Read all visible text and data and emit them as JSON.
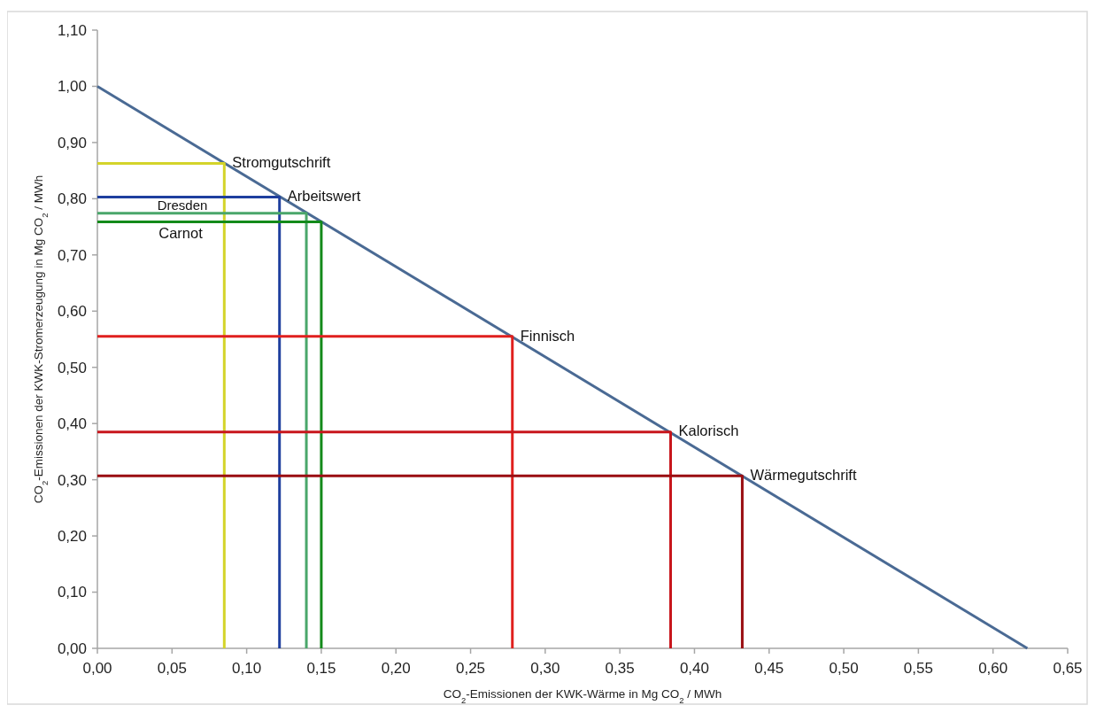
{
  "chart_data": {
    "type": "line",
    "xlabel": "CO$_{2}$-Emissionen der KWK-Wärme in Mg CO$_{2}$ / MWh",
    "ylabel": "CO$_{2}$-Emissionen der KWK-Stromerzeugung in Mg CO$_{2}$ / MWh",
    "xlim": [
      0,
      0.65
    ],
    "ylim": [
      0,
      1.1
    ],
    "xticks": [
      {
        "value": 0,
        "label": "0,00"
      },
      {
        "value": 0.05,
        "label": "0,05"
      },
      {
        "value": 0.1,
        "label": "0,10"
      },
      {
        "value": 0.15,
        "label": "0,15"
      },
      {
        "value": 0.2,
        "label": "0,20"
      },
      {
        "value": 0.25,
        "label": "0,25"
      },
      {
        "value": 0.3,
        "label": "0,30"
      },
      {
        "value": 0.35,
        "label": "0,35"
      },
      {
        "value": 0.4,
        "label": "0,40"
      },
      {
        "value": 0.45,
        "label": "0,45"
      },
      {
        "value": 0.5,
        "label": "0,50"
      },
      {
        "value": 0.55,
        "label": "0,55"
      },
      {
        "value": 0.6,
        "label": "0,60"
      },
      {
        "value": 0.65,
        "label": "0,65"
      }
    ],
    "yticks": [
      {
        "value": 0,
        "label": "0,00"
      },
      {
        "value": 0.1,
        "label": "0,10"
      },
      {
        "value": 0.2,
        "label": "0,20"
      },
      {
        "value": 0.3,
        "label": "0,30"
      },
      {
        "value": 0.4,
        "label": "0,40"
      },
      {
        "value": 0.5,
        "label": "0,50"
      },
      {
        "value": 0.6,
        "label": "0,60"
      },
      {
        "value": 0.7,
        "label": "0,70"
      },
      {
        "value": 0.8,
        "label": "0,80"
      },
      {
        "value": 0.9,
        "label": "0,90"
      },
      {
        "value": 1.0,
        "label": "1,00"
      },
      {
        "value": 1.1,
        "label": "1,10"
      }
    ],
    "grid": false,
    "marker": "none",
    "line_style": "solid",
    "series": [
      {
        "color": "#4a6a94",
        "x": [
          0,
          0.623
        ],
        "values": [
          1,
          0
        ]
      },
      {
        "name": "Stromgutschrift",
        "color": "#d4d42a",
        "x": [
          0,
          0.085,
          0.085
        ],
        "values": [
          0.863,
          0.863,
          0
        ]
      },
      {
        "name": "Arbeitswert",
        "color": "#1f3f9e",
        "x": [
          0,
          0.122,
          0.122
        ],
        "values": [
          0.803,
          0.803,
          0
        ]
      },
      {
        "name": "Dresden",
        "color": "#4aa66a",
        "x": [
          0,
          0.14,
          0.14
        ],
        "values": [
          0.774,
          0.774,
          0
        ]
      },
      {
        "name": "Carnot",
        "color": "#138a1a",
        "x": [
          0,
          0.15,
          0.15
        ],
        "values": [
          0.759,
          0.759,
          0
        ]
      },
      {
        "name": "Finnisch",
        "color": "#e0201e",
        "x": [
          0,
          0.278,
          0.278
        ],
        "values": [
          0.555,
          0.555,
          0
        ]
      },
      {
        "name": "Kalorisch",
        "color": "#c8161c",
        "x": [
          0,
          0.384,
          0.384
        ],
        "values": [
          0.385,
          0.385,
          0
        ]
      },
      {
        "name": "Wärmegutschrift",
        "color": "#9a0e12",
        "x": [
          0,
          0.432,
          0.432
        ],
        "values": [
          0.307,
          0.307,
          0
        ]
      }
    ]
  }
}
